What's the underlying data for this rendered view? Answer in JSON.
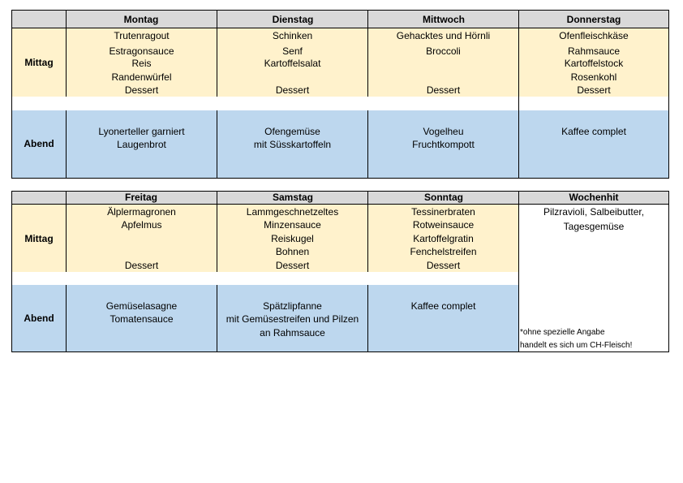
{
  "week1": {
    "days": [
      "Montag",
      "Dienstag",
      "Mittwoch",
      "Donnerstag"
    ],
    "mittag_label": "Mittag",
    "abend_label": "Abend",
    "mittag": [
      [
        "Trutenragout",
        "Estragonsauce",
        "Reis",
        "Randenwürfel",
        "Dessert"
      ],
      [
        "Schinken",
        "Senf",
        "Kartoffelsalat",
        "",
        "Dessert"
      ],
      [
        "Gehacktes und Hörnli",
        "Broccoli",
        "",
        "",
        "Dessert"
      ],
      [
        "Ofenfleischkäse",
        "Rahmsauce",
        "Kartoffelstock",
        "Rosenkohl",
        "Dessert"
      ]
    ],
    "abend": [
      [
        "Lyonerteller garniert",
        "Laugenbrot"
      ],
      [
        "Ofengemüse",
        "mit Süsskartoffeln"
      ],
      [
        "Vogelheu",
        "Fruchtkompott"
      ],
      [
        "Kaffee complet",
        ""
      ]
    ]
  },
  "week2": {
    "days": [
      "Freitag",
      "Samstag",
      "Sonntag",
      "Wochenhit"
    ],
    "mittag_label": "Mittag",
    "abend_label": "Abend",
    "mittag": [
      [
        "Älplermagronen",
        "Apfelmus",
        "",
        "",
        "Dessert"
      ],
      [
        "Lammgeschnetzeltes",
        "Minzensauce",
        "Reiskugel",
        "Bohnen",
        "Dessert"
      ],
      [
        "Tessinerbraten",
        "Rotweinsauce",
        "Kartoffelgratin",
        "Fenchelstreifen",
        "Dessert"
      ]
    ],
    "abend": [
      [
        "Gemüselasagne",
        "Tomatensauce",
        ""
      ],
      [
        "Spätzlipfanne",
        "mit Gemüsestreifen und Pilzen",
        "an Rahmsauce"
      ],
      [
        "Kaffee complet",
        "",
        ""
      ]
    ],
    "wochenhit": [
      "Pilzravioli, Salbeibutter,",
      "Tagesgemüse"
    ],
    "note": [
      "*ohne spezielle Angabe",
      "handelt es sich um CH-Fleisch!"
    ]
  },
  "colors": {
    "header": "#d9d9d9",
    "mittag": "#fff2cc",
    "abend": "#bdd7ee"
  }
}
